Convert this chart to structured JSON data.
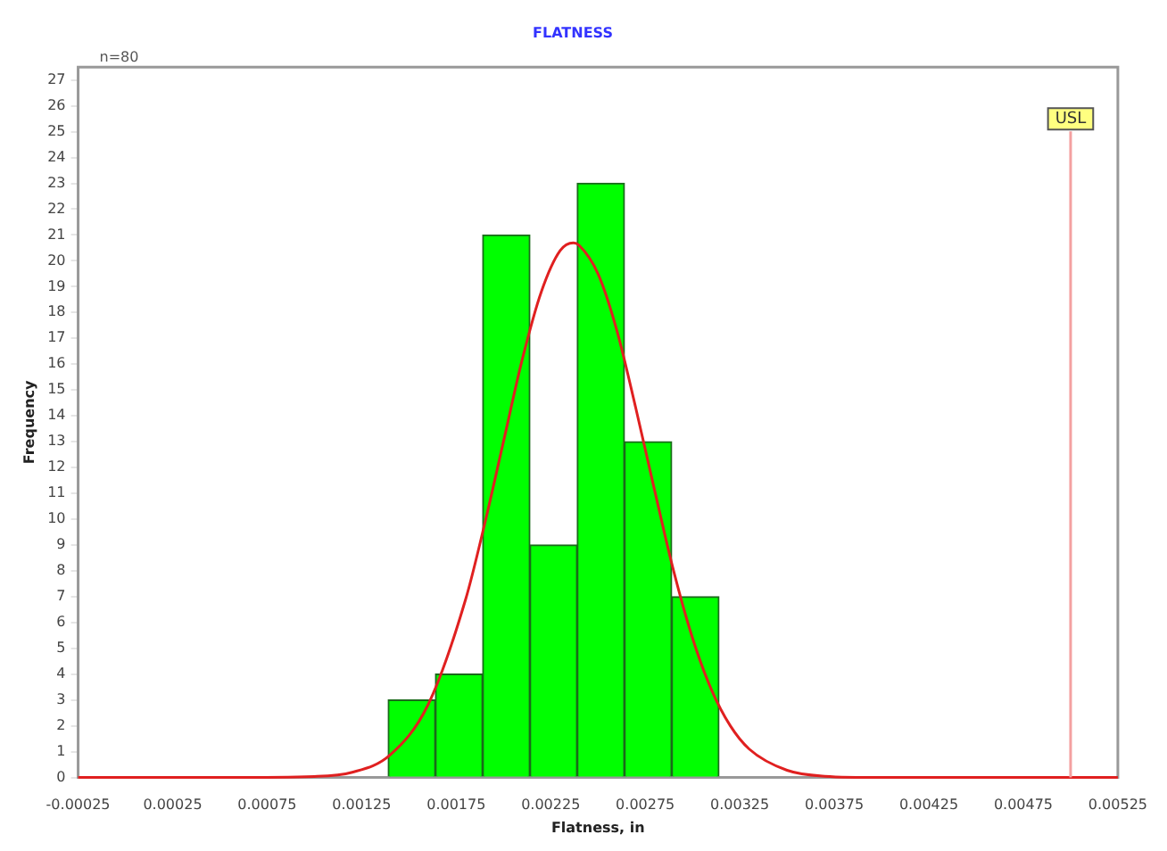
{
  "chart_data": {
    "type": "histogram",
    "title": "FLATNESS",
    "xlabel": "Flatness, in",
    "ylabel": "Frequency",
    "annotations": [
      "n=80"
    ],
    "bins": [
      0.00139,
      0.00164,
      0.00189,
      0.00214,
      0.00239,
      0.00264,
      0.00289,
      0.00314
    ],
    "values": [
      3,
      4,
      21,
      9,
      23,
      13,
      7
    ],
    "color": "#00ff00",
    "series": [
      {
        "type": "line",
        "color": "#e02020",
        "x": [
          -0.00025,
          0.0005,
          0.001,
          0.0012,
          0.0014,
          0.0016,
          0.0018,
          0.0019,
          0.002,
          0.0021,
          0.0022,
          0.0023,
          0.00237,
          0.0024,
          0.0025,
          0.0026,
          0.0027,
          0.0028,
          0.0029,
          0.003,
          0.0031,
          0.0032,
          0.0033,
          0.0035,
          0.0037,
          0.004,
          0.00525
        ],
        "values": [
          0,
          0,
          0.04,
          0.2,
          0.87,
          2.8,
          6.9,
          9.8,
          13.0,
          16.2,
          18.8,
          20.4,
          20.7,
          20.6,
          19.5,
          17.3,
          14.3,
          11.1,
          8.0,
          5.4,
          3.4,
          2.0,
          1.1,
          0.28,
          0.05,
          0,
          0
        ]
      }
    ],
    "ref_lines": [
      {
        "axis": "x",
        "value": 0.005,
        "label": "USL",
        "color": "#f4a0a0"
      }
    ],
    "xlim": [
      -0.00025,
      0.00525
    ],
    "xticks": [
      -0.00025,
      0.00025,
      0.00075,
      0.00125,
      0.00175,
      0.00225,
      0.00275,
      0.00325,
      0.00375,
      0.00425,
      0.00475,
      0.00525
    ],
    "ylim": [
      0,
      27.5
    ],
    "yticks": [
      0,
      1,
      2,
      3,
      4,
      5,
      6,
      7,
      8,
      9,
      10,
      11,
      12,
      13,
      14,
      15,
      16,
      17,
      18,
      19,
      20,
      21,
      22,
      23,
      24,
      25,
      26,
      27
    ],
    "grid": false,
    "legend": false
  }
}
